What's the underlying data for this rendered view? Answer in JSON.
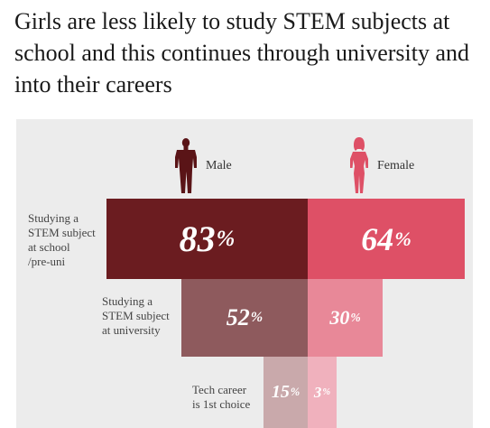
{
  "header": {
    "title": "Girls are less likely to study STEM subjects at school and this continues through university and into their careers"
  },
  "colors": {
    "panel_bg": "#ececec",
    "male_dark": "#6b1c20",
    "male_mid": "#8e5a5d",
    "male_light": "#c9a9ab",
    "female_dark": "#de5066",
    "female_mid": "#e88898",
    "female_light": "#f0b1bd"
  },
  "icons": [
    "male-silhouette-icon",
    "female-silhouette-icon"
  ],
  "chart_data": {
    "type": "bar",
    "layout": "funnel",
    "series": [
      {
        "name": "Male",
        "values": [
          83,
          52,
          15
        ]
      },
      {
        "name": "Female",
        "values": [
          64,
          30,
          3
        ]
      }
    ],
    "categories": [
      "Studying a STEM subject at school /pre-uni",
      "Studying a STEM subject at university",
      "Tech career is 1st choice"
    ],
    "category_lines": [
      [
        "Studying a",
        "STEM subject",
        "at school",
        "/pre-uni"
      ],
      [
        "Studying a",
        "STEM subject",
        "at university"
      ],
      [
        "Tech career",
        "is 1st choice"
      ]
    ],
    "unit": "%"
  }
}
